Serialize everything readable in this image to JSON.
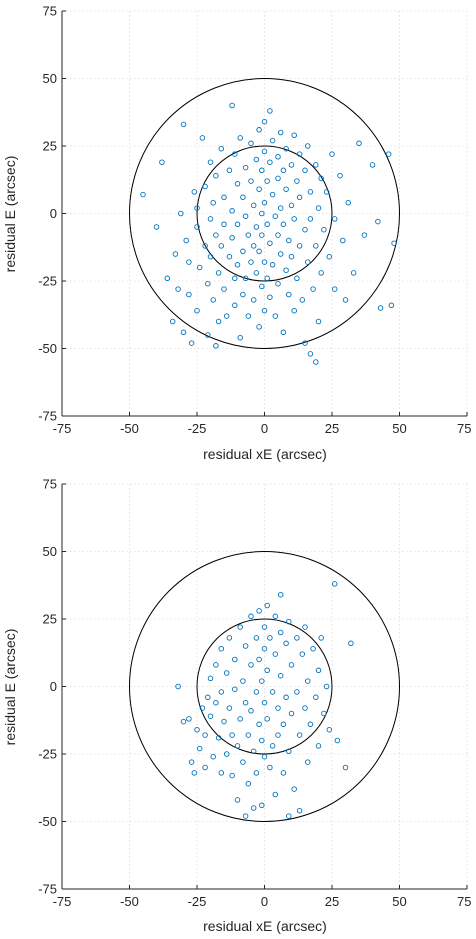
{
  "chart_data": [
    {
      "type": "scatter",
      "title": "",
      "xlabel": "residual xE (arcsec)",
      "ylabel": "residual E (arcsec)",
      "xlim": [
        -75,
        75
      ],
      "ylim": [
        -75,
        75
      ],
      "xticks": [
        "-75",
        "-50",
        "-25",
        "0",
        "25",
        "50",
        "75"
      ],
      "yticks": [
        "-75",
        "-50",
        "-25",
        "0",
        "25",
        "50",
        "75"
      ],
      "grid": true,
      "marker_color": "#0072BD",
      "circles": [
        {
          "radius": 25
        },
        {
          "radius": 50
        }
      ],
      "series": [
        {
          "points": [
            [
              -45,
              7
            ],
            [
              -40,
              -5
            ],
            [
              -38,
              19
            ],
            [
              -36,
              -24
            ],
            [
              -34,
              -40
            ],
            [
              -33,
              -15
            ],
            [
              -32,
              -28
            ],
            [
              -31,
              0
            ],
            [
              -30,
              33
            ],
            [
              -30,
              -44
            ],
            [
              -29,
              -10
            ],
            [
              -28,
              -18
            ],
            [
              -28,
              -30
            ],
            [
              -27,
              -48
            ],
            [
              -26,
              8
            ],
            [
              -25,
              2
            ],
            [
              -25,
              -5
            ],
            [
              -25,
              -36
            ],
            [
              -24,
              -20
            ],
            [
              -23,
              28
            ],
            [
              -22,
              10
            ],
            [
              -22,
              -12
            ],
            [
              -21,
              -26
            ],
            [
              -21,
              -45
            ],
            [
              -20,
              19
            ],
            [
              -20,
              -2
            ],
            [
              -20,
              -16
            ],
            [
              -19,
              4
            ],
            [
              -19,
              -32
            ],
            [
              -18,
              14
            ],
            [
              -18,
              -8
            ],
            [
              -17,
              -22
            ],
            [
              -17,
              -40
            ],
            [
              -16,
              24
            ],
            [
              -16,
              -12
            ],
            [
              -15,
              6
            ],
            [
              -15,
              -4
            ],
            [
              -15,
              -28
            ],
            [
              -14,
              -38
            ],
            [
              -13,
              16
            ],
            [
              -13,
              -16
            ],
            [
              -12,
              40
            ],
            [
              -12,
              1
            ],
            [
              -12,
              -9
            ],
            [
              -11,
              22
            ],
            [
              -11,
              -24
            ],
            [
              -11,
              -34
            ],
            [
              -10,
              11
            ],
            [
              -10,
              -4
            ],
            [
              -10,
              -19
            ],
            [
              -9,
              28
            ],
            [
              -9,
              -46
            ],
            [
              -8,
              6
            ],
            [
              -8,
              -14
            ],
            [
              -8,
              -30
            ],
            [
              -7,
              17
            ],
            [
              -7,
              -1
            ],
            [
              -7,
              -24
            ],
            [
              -6,
              -8
            ],
            [
              -6,
              -38
            ],
            [
              -5,
              26
            ],
            [
              -5,
              12
            ],
            [
              -5,
              -18
            ],
            [
              -4,
              3
            ],
            [
              -4,
              -12
            ],
            [
              -4,
              -32
            ],
            [
              -3,
              20
            ],
            [
              -3,
              -5
            ],
            [
              -3,
              -22
            ],
            [
              -2,
              31
            ],
            [
              -2,
              9
            ],
            [
              -2,
              -14
            ],
            [
              -2,
              -42
            ],
            [
              -1,
              16
            ],
            [
              -1,
              0
            ],
            [
              -1,
              -8
            ],
            [
              -1,
              -27
            ],
            [
              0,
              34
            ],
            [
              0,
              23
            ],
            [
              0,
              4
            ],
            [
              0,
              -18
            ],
            [
              0,
              -36
            ],
            [
              1,
              12
            ],
            [
              1,
              -4
            ],
            [
              1,
              -24
            ],
            [
              2,
              38
            ],
            [
              2,
              19
            ],
            [
              2,
              -11
            ],
            [
              2,
              -31
            ],
            [
              3,
              27
            ],
            [
              3,
              7
            ],
            [
              3,
              -19
            ],
            [
              4,
              -1
            ],
            [
              4,
              -38
            ],
            [
              5,
              21
            ],
            [
              5,
              13
            ],
            [
              5,
              -8
            ],
            [
              5,
              -26
            ],
            [
              6,
              30
            ],
            [
              6,
              2
            ],
            [
              6,
              -15
            ],
            [
              7,
              16
            ],
            [
              7,
              -4
            ],
            [
              7,
              -44
            ],
            [
              8,
              24
            ],
            [
              8,
              9
            ],
            [
              8,
              -21
            ],
            [
              9,
              -10
            ],
            [
              9,
              -30
            ],
            [
              10,
              18
            ],
            [
              10,
              3
            ],
            [
              10,
              -16
            ],
            [
              11,
              29
            ],
            [
              11,
              -2
            ],
            [
              11,
              -36
            ],
            [
              12,
              12
            ],
            [
              12,
              -24
            ],
            [
              13,
              22
            ],
            [
              13,
              6
            ],
            [
              13,
              -12
            ],
            [
              14,
              -32
            ],
            [
              15,
              16
            ],
            [
              15,
              -6
            ],
            [
              15,
              -48
            ],
            [
              16,
              25
            ],
            [
              16,
              -18
            ],
            [
              17,
              8
            ],
            [
              17,
              -2
            ],
            [
              18,
              -28
            ],
            [
              19,
              18
            ],
            [
              19,
              -12
            ],
            [
              20,
              2
            ],
            [
              20,
              -40
            ],
            [
              21,
              13
            ],
            [
              21,
              -22
            ],
            [
              22,
              -6
            ],
            [
              23,
              8
            ],
            [
              24,
              -16
            ],
            [
              25,
              22
            ],
            [
              26,
              -2
            ],
            [
              26,
              -28
            ],
            [
              28,
              14
            ],
            [
              29,
              -10
            ],
            [
              30,
              -32
            ],
            [
              31,
              4
            ],
            [
              33,
              -22
            ],
            [
              35,
              26
            ],
            [
              37,
              -8
            ],
            [
              40,
              18
            ],
            [
              42,
              -3
            ],
            [
              43,
              -35
            ],
            [
              46,
              22
            ],
            [
              47,
              -34
            ],
            [
              48,
              -11
            ],
            [
              17,
              -52
            ],
            [
              19,
              -55
            ],
            [
              -18,
              -49
            ]
          ]
        }
      ]
    },
    {
      "type": "scatter",
      "title": "",
      "xlabel": "residual xE (arcsec)",
      "ylabel": "residual E (arcsec)",
      "xlim": [
        -75,
        75
      ],
      "ylim": [
        -75,
        75
      ],
      "xticks": [
        "-75",
        "-50",
        "-25",
        "0",
        "25",
        "50",
        "75"
      ],
      "yticks": [
        "-75",
        "-50",
        "-25",
        "0",
        "25",
        "50",
        "75"
      ],
      "grid": true,
      "marker_color": "#0072BD",
      "circles": [
        {
          "radius": 25
        },
        {
          "radius": 50
        }
      ],
      "series": [
        {
          "points": [
            [
              -32,
              0
            ],
            [
              -30,
              -13
            ],
            [
              -28,
              -12
            ],
            [
              -27,
              -28
            ],
            [
              -26,
              -32
            ],
            [
              -25,
              -16
            ],
            [
              -24,
              -23
            ],
            [
              -23,
              -8
            ],
            [
              -22,
              -30
            ],
            [
              -22,
              -18
            ],
            [
              -21,
              -4
            ],
            [
              -20,
              3
            ],
            [
              -20,
              -11
            ],
            [
              -19,
              -26
            ],
            [
              -18,
              8
            ],
            [
              -18,
              -6
            ],
            [
              -17,
              -19
            ],
            [
              -16,
              14
            ],
            [
              -16,
              -2
            ],
            [
              -16,
              -32
            ],
            [
              -15,
              -13
            ],
            [
              -14,
              5
            ],
            [
              -14,
              -25
            ],
            [
              -13,
              18
            ],
            [
              -13,
              -8
            ],
            [
              -12,
              -18
            ],
            [
              -12,
              -33
            ],
            [
              -11,
              10
            ],
            [
              -11,
              -1
            ],
            [
              -10,
              -22
            ],
            [
              -10,
              -42
            ],
            [
              -9,
              22
            ],
            [
              -9,
              -12
            ],
            [
              -8,
              2
            ],
            [
              -8,
              -28
            ],
            [
              -7,
              15
            ],
            [
              -7,
              -6
            ],
            [
              -6,
              -18
            ],
            [
              -6,
              -36
            ],
            [
              -5,
              26
            ],
            [
              -5,
              8
            ],
            [
              -5,
              -9
            ],
            [
              -4,
              -24
            ],
            [
              -3,
              18
            ],
            [
              -3,
              -2
            ],
            [
              -3,
              -32
            ],
            [
              -2,
              28
            ],
            [
              -2,
              10
            ],
            [
              -2,
              -14
            ],
            [
              -1,
              2
            ],
            [
              -1,
              -20
            ],
            [
              -1,
              -44
            ],
            [
              0,
              22
            ],
            [
              0,
              14
            ],
            [
              0,
              -6
            ],
            [
              0,
              -26
            ],
            [
              1,
              30
            ],
            [
              1,
              6
            ],
            [
              1,
              -12
            ],
            [
              2,
              -30
            ],
            [
              2,
              18
            ],
            [
              3,
              -2
            ],
            [
              3,
              -22
            ],
            [
              4,
              26
            ],
            [
              4,
              12
            ],
            [
              4,
              -40
            ],
            [
              5,
              -8
            ],
            [
              5,
              -18
            ],
            [
              6,
              34
            ],
            [
              6,
              20
            ],
            [
              6,
              4
            ],
            [
              7,
              -14
            ],
            [
              7,
              -32
            ],
            [
              8,
              16
            ],
            [
              8,
              -4
            ],
            [
              9,
              24
            ],
            [
              9,
              -24
            ],
            [
              10,
              8
            ],
            [
              10,
              -10
            ],
            [
              11,
              -38
            ],
            [
              12,
              18
            ],
            [
              12,
              -2
            ],
            [
              13,
              -18
            ],
            [
              13,
              -46
            ],
            [
              14,
              12
            ],
            [
              15,
              22
            ],
            [
              15,
              -8
            ],
            [
              16,
              2
            ],
            [
              16,
              -28
            ],
            [
              17,
              -14
            ],
            [
              18,
              14
            ],
            [
              19,
              -4
            ],
            [
              20,
              6
            ],
            [
              20,
              -22
            ],
            [
              21,
              18
            ],
            [
              22,
              -10
            ],
            [
              23,
              0
            ],
            [
              24,
              -16
            ],
            [
              26,
              38
            ],
            [
              27,
              -20
            ],
            [
              30,
              -30
            ],
            [
              32,
              16
            ],
            [
              -7,
              -48
            ],
            [
              9,
              -48
            ],
            [
              -4,
              -45
            ]
          ]
        }
      ]
    }
  ]
}
